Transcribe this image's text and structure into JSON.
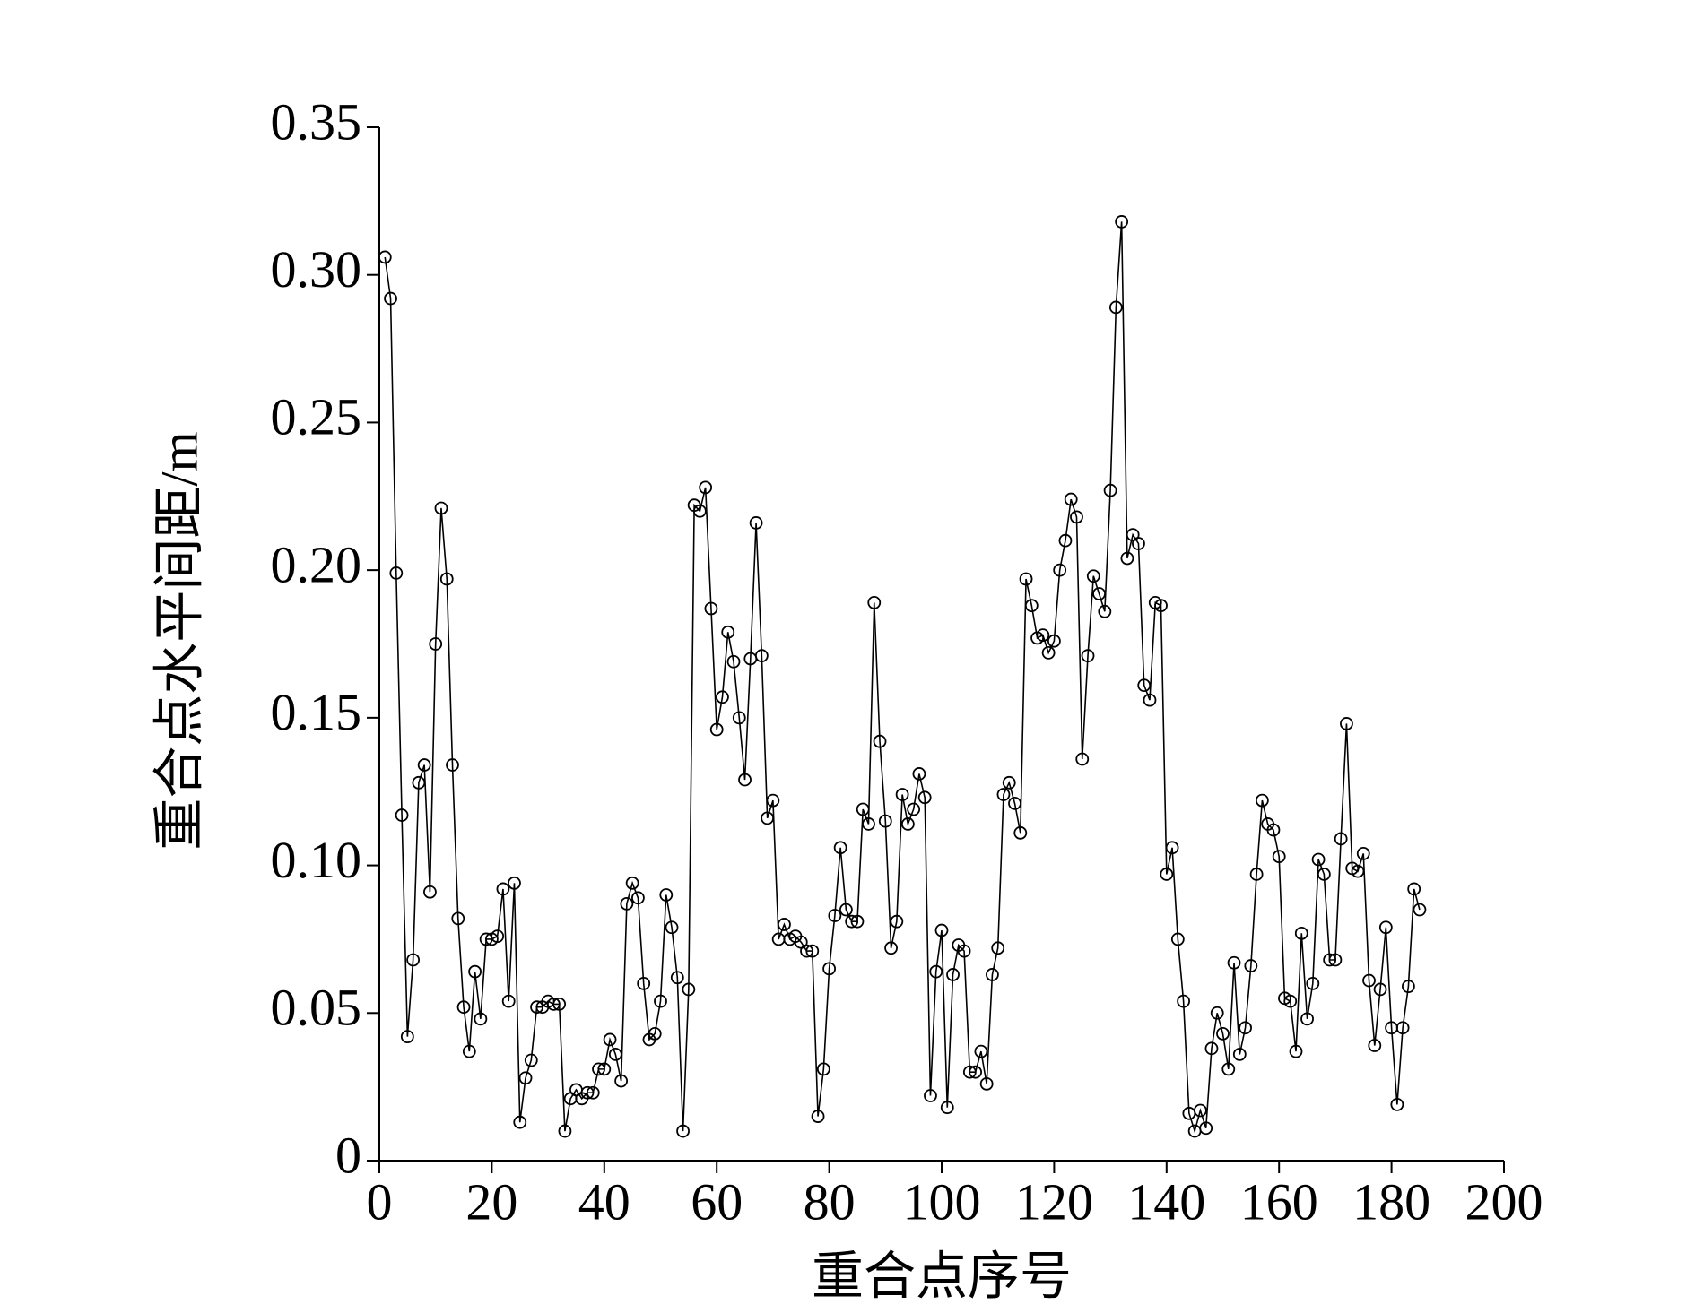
{
  "chart_data": {
    "type": "line",
    "xlabel": "重合点序号",
    "ylabel": "重合点水平间距/m",
    "x": [
      1,
      2,
      3,
      4,
      5,
      6,
      7,
      8,
      9,
      10,
      11,
      12,
      13,
      14,
      15,
      16,
      17,
      18,
      19,
      20,
      21,
      22,
      23,
      24,
      25,
      26,
      27,
      28,
      29,
      30,
      31,
      32,
      33,
      34,
      35,
      36,
      37,
      38,
      39,
      40,
      41,
      42,
      43,
      44,
      45,
      46,
      47,
      48,
      49,
      50,
      51,
      52,
      53,
      54,
      55,
      56,
      57,
      58,
      59,
      60,
      61,
      62,
      63,
      64,
      65,
      66,
      67,
      68,
      69,
      70,
      71,
      72,
      73,
      74,
      75,
      76,
      77,
      78,
      79,
      80,
      81,
      82,
      83,
      84,
      85,
      86,
      87,
      88,
      89,
      90,
      91,
      92,
      93,
      94,
      95,
      96,
      97,
      98,
      99,
      100,
      101,
      102,
      103,
      104,
      105,
      106,
      107,
      108,
      109,
      110,
      111,
      112,
      113,
      114,
      115,
      116,
      117,
      118,
      119,
      120,
      121,
      122,
      123,
      124,
      125,
      126,
      127,
      128,
      129,
      130,
      131,
      132,
      133,
      134,
      135,
      136,
      137,
      138,
      139,
      140,
      141,
      142,
      143,
      144,
      145,
      146,
      147,
      148,
      149,
      150,
      151,
      152,
      153,
      154,
      155,
      156,
      157,
      158,
      159,
      160,
      161,
      162,
      163,
      164,
      165,
      166,
      167,
      168,
      169,
      170,
      171,
      172,
      173,
      174,
      175,
      176,
      177,
      178,
      179,
      180,
      181,
      182,
      183,
      184,
      185
    ],
    "series": [
      {
        "color": "#000000",
        "values": [
          0.306,
          0.292,
          0.199,
          0.117,
          0.042,
          0.068,
          0.128,
          0.134,
          0.091,
          0.175,
          0.221,
          0.197,
          0.134,
          0.082,
          0.052,
          0.037,
          0.064,
          0.048,
          0.075,
          0.075,
          0.076,
          0.092,
          0.054,
          0.094,
          0.013,
          0.028,
          0.034,
          0.052,
          0.052,
          0.054,
          0.053,
          0.053,
          0.01,
          0.021,
          0.024,
          0.021,
          0.023,
          0.023,
          0.031,
          0.031,
          0.041,
          0.036,
          0.027,
          0.087,
          0.094,
          0.089,
          0.06,
          0.041,
          0.043,
          0.054,
          0.09,
          0.079,
          0.062,
          0.01,
          0.058,
          0.222,
          0.22,
          0.228,
          0.187,
          0.146,
          0.157,
          0.179,
          0.169,
          0.15,
          0.129,
          0.17,
          0.216,
          0.171,
          0.116,
          0.122,
          0.075,
          0.08,
          0.075,
          0.076,
          0.074,
          0.071,
          0.071,
          0.015,
          0.031,
          0.065,
          0.083,
          0.106,
          0.085,
          0.081,
          0.081,
          0.119,
          0.114,
          0.189,
          0.142,
          0.115,
          0.072,
          0.081,
          0.124,
          0.114,
          0.119,
          0.131,
          0.123,
          0.022,
          0.064,
          0.078,
          0.018,
          0.063,
          0.073,
          0.071,
          0.03,
          0.03,
          0.037,
          0.026,
          0.063,
          0.072,
          0.124,
          0.128,
          0.121,
          0.111,
          0.197,
          0.188,
          0.177,
          0.178,
          0.172,
          0.176,
          0.2,
          0.21,
          0.224,
          0.218,
          0.136,
          0.171,
          0.198,
          0.192,
          0.186,
          0.227,
          0.289,
          0.318,
          0.204,
          0.212,
          0.209,
          0.161,
          0.156,
          0.189,
          0.188,
          0.097,
          0.106,
          0.075,
          0.054,
          0.016,
          0.01,
          0.017,
          0.011,
          0.038,
          0.05,
          0.043,
          0.031,
          0.067,
          0.036,
          0.045,
          0.066,
          0.097,
          0.122,
          0.114,
          0.112,
          0.103,
          0.055,
          0.054,
          0.037,
          0.077,
          0.048,
          0.06,
          0.102,
          0.097,
          0.068,
          0.068,
          0.109,
          0.148,
          0.099,
          0.098,
          0.104,
          0.061,
          0.039,
          0.058,
          0.079,
          0.045,
          0.019,
          0.045,
          0.059,
          0.092,
          0.085
        ]
      }
    ],
    "xlim": [
      0,
      200
    ],
    "xticks": [
      0,
      20,
      40,
      60,
      80,
      100,
      120,
      140,
      160,
      180,
      200
    ],
    "ylim": [
      0,
      0.35
    ],
    "yticks": [
      0,
      0.05,
      {
        "value": 0.1,
        "label": "0.10"
      },
      0.15,
      {
        "value": 0.2,
        "label": "0.20"
      },
      0.25,
      {
        "value": 0.3,
        "label": "0.30"
      },
      0.35
    ],
    "grid": false,
    "markers": "open-circle"
  }
}
